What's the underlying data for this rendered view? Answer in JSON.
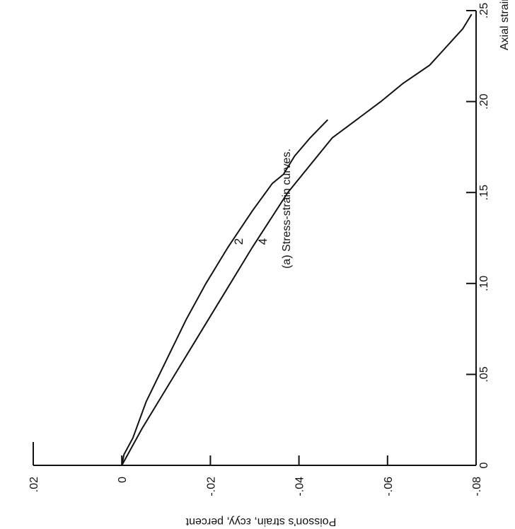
{
  "chart_data": {
    "type": "line",
    "caption": "(a) Stress-strain curves.",
    "xlabel": "Axial strain",
    "ylabel": "Poisson's strain, εcyy, percent",
    "xlim": [
      0,
      0.25
    ],
    "ylim": [
      -0.08,
      0.02
    ],
    "x_ticks": [
      0,
      0.05,
      0.1,
      0.15,
      0.2,
      0.25
    ],
    "x_tick_labels": [
      "0",
      ".05",
      ".10",
      ".15",
      ".20",
      ".25"
    ],
    "y_ticks": [
      0.02,
      0,
      -0.02,
      -0.04,
      -0.06,
      -0.08
    ],
    "y_tick_labels": [
      ".02",
      "0",
      "-.02",
      "-.04",
      "-.06",
      "-.08"
    ],
    "grid": false,
    "orientation": "rotated 90 degrees clockwise",
    "series": [
      {
        "name": "2",
        "x": [
          0.0,
          0.006,
          0.015,
          0.025,
          0.035,
          0.045,
          0.06,
          0.08,
          0.1,
          0.12,
          0.14,
          0.155,
          0.16,
          0.17,
          0.18,
          0.19
        ],
        "y": [
          0.0,
          -0.0005,
          -0.0025,
          -0.004,
          -0.0055,
          -0.0075,
          -0.0105,
          -0.0145,
          -0.019,
          -0.024,
          -0.0295,
          -0.034,
          -0.0365,
          -0.039,
          -0.0425,
          -0.0465
        ]
      },
      {
        "name": "4",
        "x": [
          0.0,
          0.02,
          0.05,
          0.08,
          0.1,
          0.12,
          0.15,
          0.18,
          0.2,
          0.21,
          0.22,
          0.24,
          0.248
        ],
        "y": [
          0.0,
          -0.0045,
          -0.012,
          -0.0195,
          -0.0245,
          -0.0295,
          -0.0375,
          -0.0475,
          -0.0585,
          -0.0635,
          -0.0695,
          -0.077,
          -0.079
        ]
      }
    ]
  }
}
